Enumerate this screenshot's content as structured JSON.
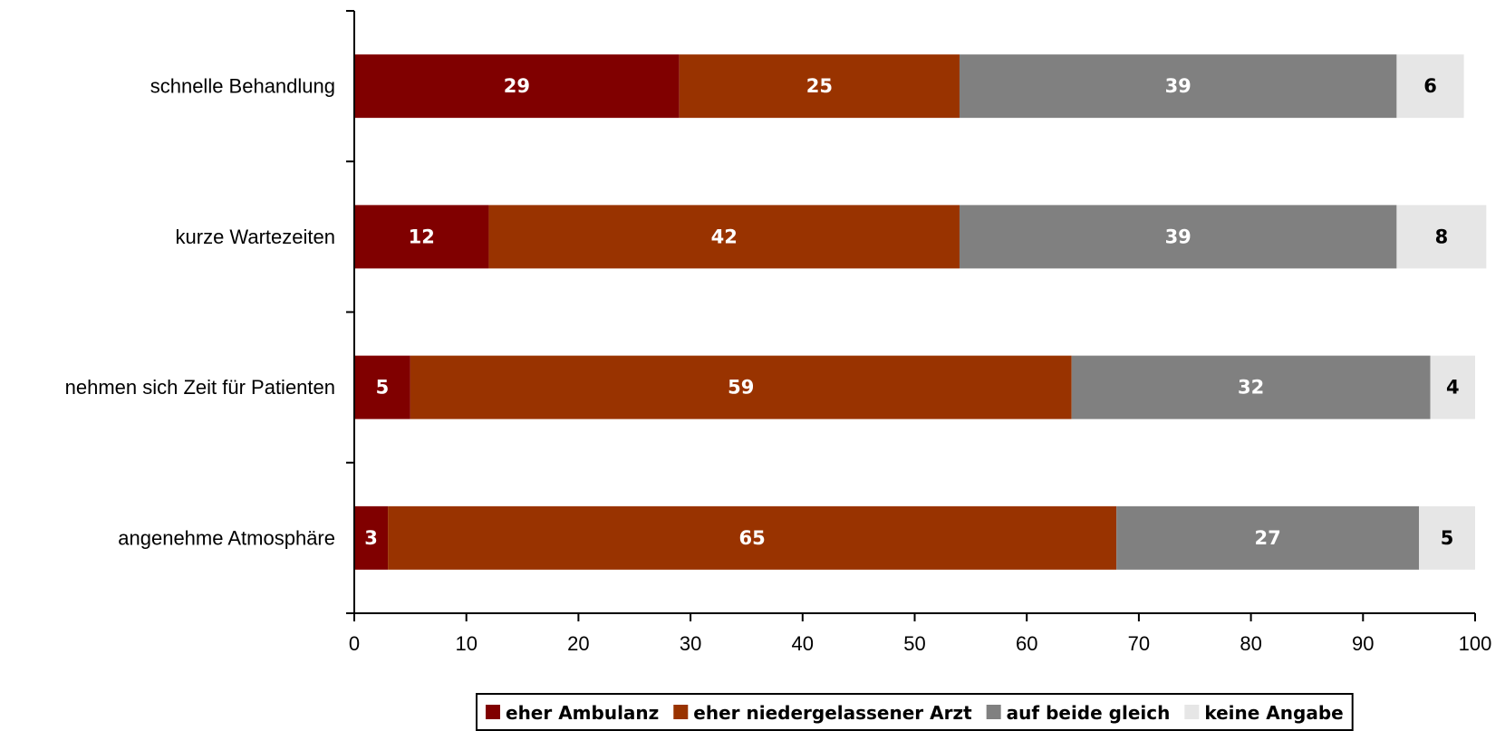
{
  "chart_data": {
    "type": "bar",
    "orientation": "horizontal",
    "stacked": true,
    "categories": [
      "schnelle Behandlung",
      "kurze Wartezeiten",
      "nehmen sich Zeit für Patienten",
      "angenehme Atmosphäre"
    ],
    "series": [
      {
        "name": "eher Ambulanz",
        "values": [
          29,
          12,
          5,
          3
        ],
        "color": "#800000",
        "label_color": "#ffffff"
      },
      {
        "name": "eher niedergelassener Arzt",
        "values": [
          25,
          42,
          59,
          65
        ],
        "color": "#993300",
        "label_color": "#ffffff"
      },
      {
        "name": "auf beide gleich",
        "values": [
          39,
          39,
          32,
          27
        ],
        "color": "#808080",
        "label_color": "#ffffff"
      },
      {
        "name": "keine Angabe",
        "values": [
          6,
          8,
          4,
          5
        ],
        "color": "#e6e6e6",
        "label_color": "#000000"
      }
    ],
    "xlim": [
      0,
      100
    ],
    "xticks": [
      0,
      10,
      20,
      30,
      40,
      50,
      60,
      70,
      80,
      90,
      100
    ],
    "grid": false,
    "legend_position": "bottom",
    "title": "",
    "xlabel": "",
    "ylabel": ""
  }
}
